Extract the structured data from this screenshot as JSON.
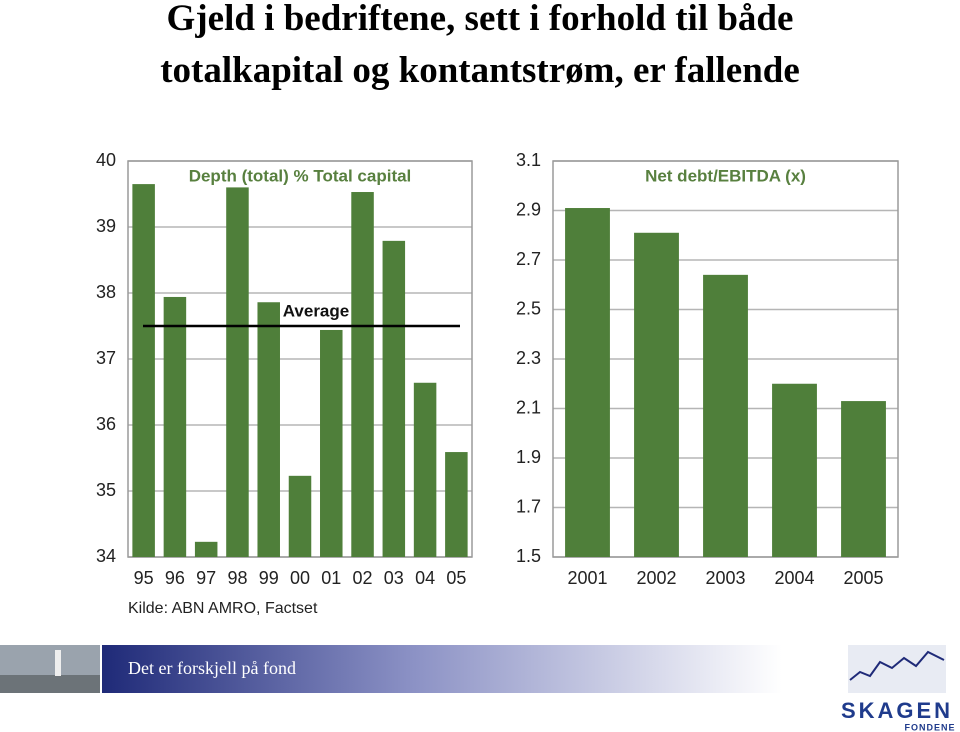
{
  "title_lines": [
    "Gjeld i bedriftene, sett i forhold til både",
    "totalkapital og kontantstrøm, er fallende"
  ],
  "chart_data": [
    {
      "type": "bar",
      "title": "Depth (total) % Total capital",
      "categories": [
        "95",
        "96",
        "97",
        "98",
        "99",
        "00",
        "01",
        "02",
        "03",
        "04",
        "05"
      ],
      "values": [
        39.65,
        37.94,
        34.23,
        39.6,
        37.86,
        35.23,
        37.44,
        39.53,
        38.79,
        36.64,
        35.59
      ],
      "color": "#4f7f3a",
      "ylim": [
        34,
        40
      ],
      "yticks": [
        34,
        35,
        36,
        37,
        38,
        39,
        40
      ],
      "grid": true,
      "reference_line": {
        "label": "Average",
        "value": 37.5
      }
    },
    {
      "type": "bar",
      "title": "Net debt/EBITDA (x)",
      "categories": [
        "2001",
        "2002",
        "2003",
        "2004",
        "2005"
      ],
      "values": [
        2.91,
        2.81,
        2.64,
        2.2,
        2.13
      ],
      "color": "#4f7f3a",
      "ylim": [
        1.5,
        3.1
      ],
      "yticks": [
        1.5,
        1.7,
        1.9,
        2.1,
        2.3,
        2.5,
        2.7,
        2.9,
        3.1
      ],
      "grid": true
    }
  ],
  "source": "Kilde: ABN AMRO, Factset",
  "footer": {
    "slogan": "Det er forskjell på fond",
    "logo": "SKAGEN",
    "logo_subtitle": "FONDENE"
  }
}
